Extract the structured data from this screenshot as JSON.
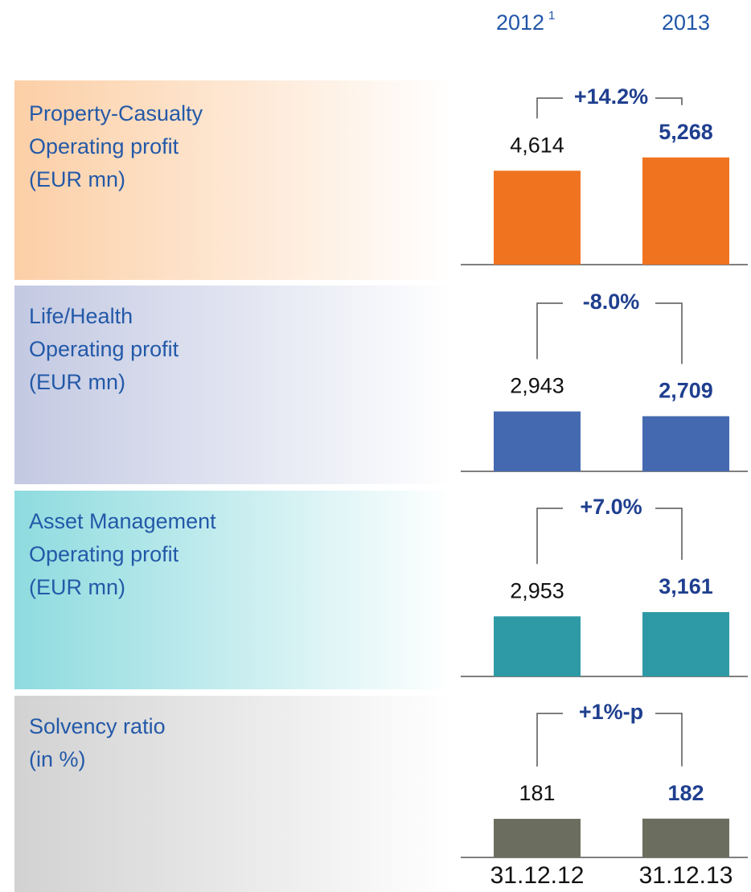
{
  "header": {
    "columns": [
      "2012",
      "2013"
    ],
    "footnote_mark": "1"
  },
  "chart_data": [
    {
      "type": "bar",
      "title_lines": [
        "Property-Casualty",
        "Operating profit",
        "(EUR mn)"
      ],
      "values": [
        4614,
        5268
      ],
      "value_labels": [
        "4,614",
        "5,268"
      ],
      "change": "+14.2%",
      "color": "#f07320",
      "panel_color": "#fccfa6"
    },
    {
      "type": "bar",
      "title_lines": [
        "Life/Health",
        "Operating profit",
        "(EUR mn)"
      ],
      "values": [
        2943,
        2709
      ],
      "value_labels": [
        "2,943",
        "2,709"
      ],
      "change": "-8.0%",
      "color": "#4469b0",
      "panel_color": "#c3c9e2"
    },
    {
      "type": "bar",
      "title_lines": [
        "Asset Management",
        "Operating profit",
        "(EUR mn)"
      ],
      "values": [
        2953,
        3161
      ],
      "value_labels": [
        "2,953",
        "3,161"
      ],
      "change": "+7.0%",
      "color": "#2e9aa5",
      "panel_color": "#8edbdf"
    },
    {
      "type": "bar",
      "title_lines": [
        "Solvency ratio",
        "(in %)"
      ],
      "categories": [
        "31.12.12",
        "31.12.13"
      ],
      "values": [
        181,
        182
      ],
      "change": "+1%-p",
      "color": "#6b6e5e",
      "panel_color": "#d2d2d2"
    }
  ]
}
